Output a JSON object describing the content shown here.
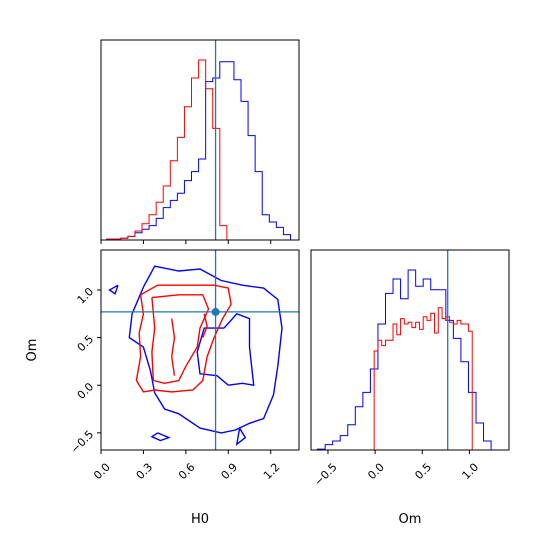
{
  "chart_data": {
    "type": "corner",
    "parameters": [
      "H0",
      "Om"
    ],
    "truth": {
      "H0": 0.81,
      "Om": 0.77
    },
    "colors": {
      "blue": "#0000ff",
      "red": "#ff0000",
      "truth": "#1f77b4"
    },
    "panels": [
      {
        "id": "hist-H0",
        "type": "histogram",
        "xlim": [
          0.0,
          1.4
        ],
        "xticks": [
          0.0,
          0.3,
          0.6,
          0.9,
          1.2
        ],
        "yticks_visible": false,
        "series": [
          {
            "color": "blue",
            "bin_edges": [
              0.04,
              0.09,
              0.14,
              0.19,
              0.24,
              0.29,
              0.34,
              0.39,
              0.44,
              0.49,
              0.54,
              0.59,
              0.64,
              0.69,
              0.74,
              0.79,
              0.84,
              0.89,
              0.94,
              0.99,
              1.04,
              1.09,
              1.14,
              1.19,
              1.24,
              1.29,
              1.34
            ],
            "counts": [
              0.5,
              0.5,
              1,
              2,
              4,
              6,
              8,
              12,
              18,
              22,
              26,
              33,
              38,
              45,
              88,
              90,
              99,
              99,
              89,
              77,
              58,
              38,
              14,
              10,
              7,
              3
            ]
          },
          {
            "color": "red",
            "bin_edges": [
              0.04,
              0.09,
              0.14,
              0.19,
              0.24,
              0.29,
              0.34,
              0.39,
              0.44,
              0.49,
              0.54,
              0.59,
              0.64,
              0.69,
              0.74,
              0.79,
              0.84,
              0.89
            ],
            "counts": [
              0.5,
              0.5,
              1,
              2,
              5,
              9,
              14,
              21,
              30,
              44,
              57,
              74,
              90,
              100,
              84,
              62,
              8
            ]
          }
        ]
      },
      {
        "id": "contour-H0-Om",
        "type": "contour2d",
        "xlim": [
          0.0,
          1.4
        ],
        "ylim": [
          -0.68,
          1.42
        ],
        "xticks": [
          0.0,
          0.3,
          0.6,
          0.9,
          1.2
        ],
        "yticks": [
          -0.5,
          0.0,
          0.5,
          1.0
        ],
        "xlabel": "H0",
        "ylabel": "Om",
        "series": [
          {
            "color": "blue",
            "contours": [
              [
                [
                  0.3,
                  1.03
                ],
                [
                  0.38,
                  1.25
                ],
                [
                  0.55,
                  1.2
                ],
                [
                  0.7,
                  1.22
                ],
                [
                  0.85,
                  1.1
                ],
                [
                  1.0,
                  1.05
                ],
                [
                  1.15,
                  1.02
                ],
                [
                  1.25,
                  0.9
                ],
                [
                  1.28,
                  0.6
                ],
                [
                  1.25,
                  0.2
                ],
                [
                  1.22,
                  -0.1
                ],
                [
                  1.15,
                  -0.35
                ],
                [
                  1.05,
                  -0.4
                ],
                [
                  0.95,
                  -0.47
                ],
                [
                  0.85,
                  -0.5
                ],
                [
                  0.7,
                  -0.45
                ],
                [
                  0.55,
                  -0.3
                ],
                [
                  0.45,
                  -0.25
                ],
                [
                  0.38,
                  -0.08
                ],
                [
                  0.35,
                  0.15
                ],
                [
                  0.3,
                  0.4
                ],
                [
                  0.2,
                  0.5
                ],
                [
                  0.22,
                  0.75
                ],
                [
                  0.3,
                  1.03
                ]
              ],
              [
                [
                  0.87,
                  0.6
                ],
                [
                  0.96,
                  0.75
                ],
                [
                  1.05,
                  0.7
                ],
                [
                  1.05,
                  0.4
                ],
                [
                  1.08,
                  0.0
                ],
                [
                  1.0,
                  0.02
                ],
                [
                  0.9,
                  0.0
                ],
                [
                  0.82,
                  0.1
                ],
                [
                  0.7,
                  0.12
                ],
                [
                  0.68,
                  0.35
                ],
                [
                  0.73,
                  0.6
                ],
                [
                  0.87,
                  0.6
                ]
              ],
              [
                [
                  0.12,
                  1.05
                ],
                [
                  0.06,
                  1.0
                ],
                [
                  0.1,
                  0.96
                ],
                [
                  0.12,
                  1.05
                ]
              ],
              [
                [
                  0.4,
                  -0.5
                ],
                [
                  0.48,
                  -0.55
                ],
                [
                  0.42,
                  -0.58
                ],
                [
                  0.36,
                  -0.54
                ],
                [
                  0.4,
                  -0.5
                ]
              ],
              [
                [
                  0.98,
                  -0.45
                ],
                [
                  1.02,
                  -0.55
                ],
                [
                  0.96,
                  -0.62
                ],
                [
                  0.98,
                  -0.45
                ]
              ]
            ]
          },
          {
            "color": "red",
            "contours": [
              [
                [
                  0.28,
                  0.95
                ],
                [
                  0.4,
                  1.05
                ],
                [
                  0.6,
                  1.05
                ],
                [
                  0.8,
                  1.05
                ],
                [
                  0.9,
                  1.02
                ],
                [
                  0.92,
                  0.85
                ],
                [
                  0.86,
                  0.7
                ],
                [
                  0.8,
                  0.5
                ],
                [
                  0.75,
                  0.3
                ],
                [
                  0.72,
                  0.05
                ],
                [
                  0.65,
                  -0.05
                ],
                [
                  0.5,
                  -0.07
                ],
                [
                  0.38,
                  -0.05
                ],
                [
                  0.3,
                  -0.07
                ],
                [
                  0.25,
                  0.05
                ],
                [
                  0.28,
                  0.3
                ],
                [
                  0.27,
                  0.55
                ],
                [
                  0.3,
                  0.75
                ],
                [
                  0.28,
                  0.95
                ]
              ],
              [
                [
                  0.36,
                  0.92
                ],
                [
                  0.55,
                  0.95
                ],
                [
                  0.72,
                  0.95
                ],
                [
                  0.76,
                  0.8
                ],
                [
                  0.7,
                  0.6
                ],
                [
                  0.68,
                  0.4
                ],
                [
                  0.6,
                  0.2
                ],
                [
                  0.55,
                  0.05
                ],
                [
                  0.45,
                  0.02
                ],
                [
                  0.37,
                  0.05
                ],
                [
                  0.36,
                  0.35
                ],
                [
                  0.38,
                  0.6
                ],
                [
                  0.36,
                  0.92
                ]
              ],
              [
                [
                  0.5,
                  0.7
                ],
                [
                  0.52,
                  0.5
                ],
                [
                  0.5,
                  0.3
                ],
                [
                  0.52,
                  0.1
                ]
              ],
              [
                [
                  0.73,
                  0.75
                ],
                [
                  0.75,
                  0.62
                ],
                [
                  0.72,
                  0.5
                ]
              ]
            ]
          }
        ],
        "truth_marker": {
          "x": 0.81,
          "y": 0.77
        }
      },
      {
        "id": "hist-Om",
        "type": "histogram",
        "xlim": [
          -0.68,
          1.42
        ],
        "xticks": [
          -0.5,
          0.0,
          0.5,
          1.0
        ],
        "xlabel": "Om",
        "yticks_visible": false,
        "series": [
          {
            "color": "blue",
            "bin_edges": [
              -0.61,
              -0.53,
              -0.45,
              -0.37,
              -0.29,
              -0.21,
              -0.13,
              -0.05,
              0.03,
              0.11,
              0.19,
              0.27,
              0.35,
              0.43,
              0.51,
              0.59,
              0.67,
              0.75,
              0.83,
              0.91,
              0.99,
              1.07,
              1.15,
              1.23
            ],
            "counts": [
              0.5,
              3,
              5,
              8,
              14,
              24,
              32,
              45,
              70,
              87,
              95,
              84,
              100,
              91,
              95,
              89,
              89,
              72,
              62,
              49,
              32,
              15,
              5
            ]
          },
          {
            "color": "red",
            "bin_edges": [
              -0.01,
              0.03,
              0.07,
              0.11,
              0.15,
              0.19,
              0.23,
              0.27,
              0.31,
              0.35,
              0.39,
              0.43,
              0.47,
              0.51,
              0.55,
              0.59,
              0.63,
              0.67,
              0.71,
              0.75,
              0.79,
              0.83,
              0.87,
              0.91,
              0.95,
              0.99,
              1.03
            ],
            "counts": [
              55,
              61,
              58,
              61,
              61,
              70,
              64,
              73,
              70,
              71,
              68,
              71,
              67,
              74,
              72,
              76,
              65,
              79,
              73,
              74,
              71,
              70,
              72,
              70,
              70,
              66
            ]
          }
        ]
      }
    ]
  }
}
